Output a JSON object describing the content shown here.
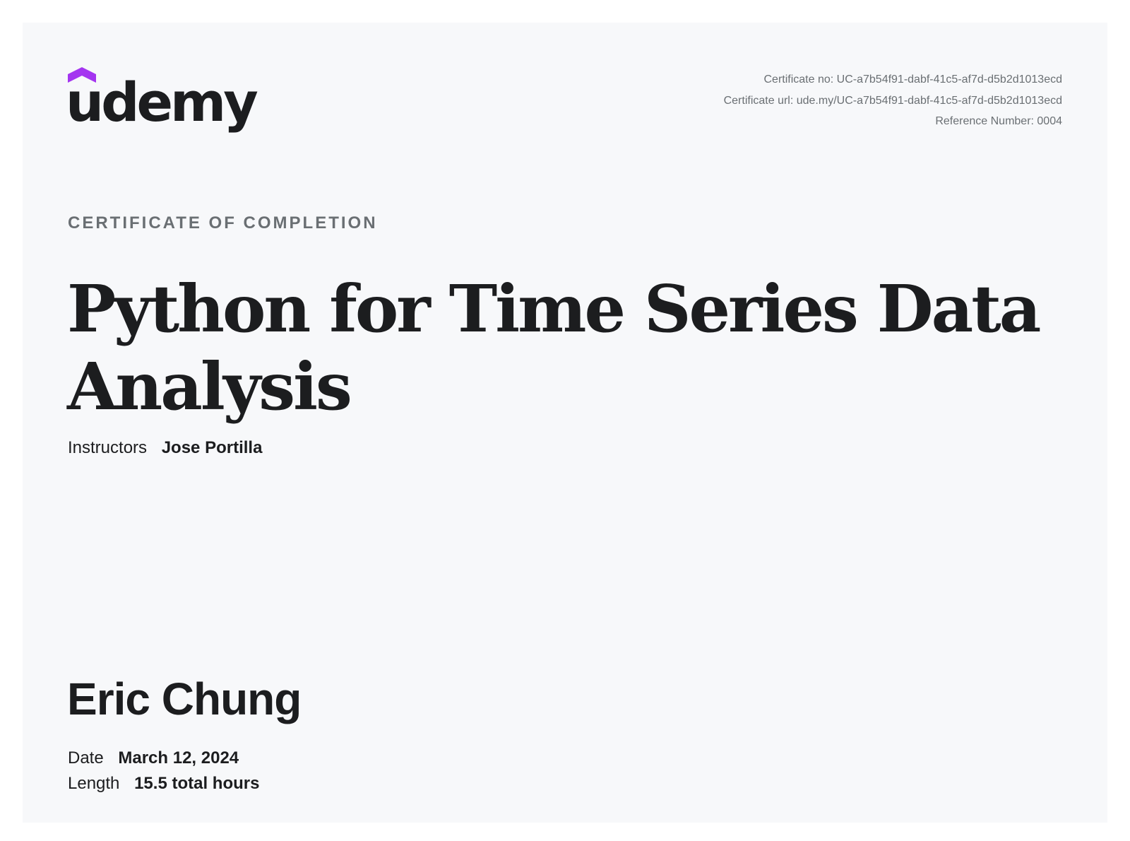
{
  "brand": {
    "name": "udemy",
    "accent_color": "#a435f0",
    "logo_icon": "graduation-cap-icon"
  },
  "certificate": {
    "number_line": "Certificate no: UC-a7b54f91-dabf-41c5-af7d-d5b2d1013ecd",
    "url_line": "Certificate url: ude.my/UC-a7b54f91-dabf-41c5-af7d-d5b2d1013ecd",
    "reference_line": "Reference Number: 0004",
    "eyebrow": "CERTIFICATE OF COMPLETION",
    "course_title": "Python for Time Series Data Analysis",
    "instructors_label": "Instructors",
    "instructors_value": "Jose Portilla",
    "recipient": "Eric Chung",
    "date_label": "Date",
    "date_value": "March 12, 2024",
    "length_label": "Length",
    "length_value": "15.5 total hours"
  }
}
